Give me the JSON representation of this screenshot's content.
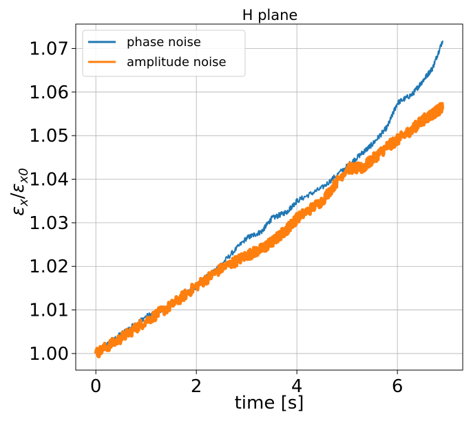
{
  "chart_data": {
    "type": "line",
    "title": "H plane",
    "xlabel": "time [s]",
    "ylabel": "εx/εx0",
    "xlim": [
      -0.4,
      7.3
    ],
    "ylim": [
      0.9962,
      1.0756
    ],
    "xticks": [
      0,
      2,
      4,
      6
    ],
    "xtick_labels": [
      "0",
      "2",
      "4",
      "6"
    ],
    "yticks": [
      1.0,
      1.01,
      1.02,
      1.03,
      1.04,
      1.05,
      1.06,
      1.07
    ],
    "ytick_labels": [
      "1.00",
      "1.01",
      "1.02",
      "1.03",
      "1.04",
      "1.05",
      "1.06",
      "1.07"
    ],
    "grid": true,
    "legend_position": "top-left",
    "series": [
      {
        "name": "phase noise",
        "color": "#1f77b4",
        "x": [
          0,
          0.5,
          1.0,
          1.5,
          2.0,
          2.5,
          3.0,
          3.3,
          3.5,
          3.8,
          4.0,
          4.5,
          5.0,
          5.3,
          5.5,
          5.8,
          6.0,
          6.3,
          6.5,
          6.7,
          6.9
        ],
        "y": [
          1.0,
          1.0045,
          1.0085,
          1.011,
          1.0155,
          1.0205,
          1.0265,
          1.028,
          1.031,
          1.0325,
          1.035,
          1.038,
          1.043,
          1.046,
          1.048,
          1.052,
          1.0575,
          1.0595,
          1.0625,
          1.0655,
          1.0718
        ]
      },
      {
        "name": "amplitude noise",
        "color": "#ff7f0e",
        "x": [
          0,
          0.5,
          1.0,
          1.5,
          2.0,
          2.5,
          3.0,
          3.3,
          3.5,
          3.8,
          4.0,
          4.5,
          5.0,
          5.3,
          5.5,
          5.8,
          6.0,
          6.3,
          6.5,
          6.7,
          6.9
        ],
        "y": [
          1.0,
          1.0035,
          1.0075,
          1.011,
          1.0155,
          1.0195,
          1.0225,
          1.024,
          1.0255,
          1.0285,
          1.031,
          1.035,
          1.0425,
          1.0425,
          1.0445,
          1.0475,
          1.049,
          1.0515,
          1.0535,
          1.055,
          1.0565
        ]
      }
    ]
  }
}
